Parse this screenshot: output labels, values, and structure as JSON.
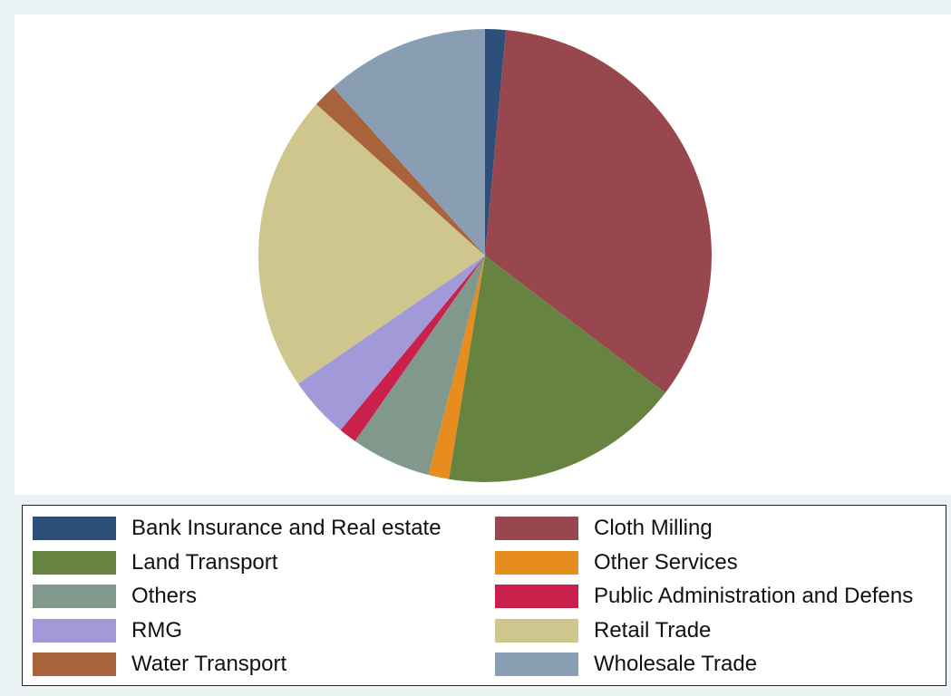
{
  "chart_data": {
    "type": "pie",
    "start_angle": "12 o'clock",
    "direction": "clockwise",
    "legend_placement": "bottom",
    "legend_columns": 2,
    "slices": [
      {
        "label": "Bank Insurance and Real estate",
        "value": 1.5,
        "color": "#2c5079"
      },
      {
        "label": "Cloth Milling",
        "value": 34.5,
        "color": "#98474e"
      },
      {
        "label": "Land Transport",
        "value": 17.5,
        "color": "#66833f"
      },
      {
        "label": "Other Services",
        "value": 1.5,
        "color": "#e78c1f"
      },
      {
        "label": "Others",
        "value": 5.8,
        "color": "#81998d"
      },
      {
        "label": "Public Administration and Defens",
        "value": 1.3,
        "color": "#cb1f4c"
      },
      {
        "label": "RMG",
        "value": 4.5,
        "color": "#a29ad8"
      },
      {
        "label": "Retail Trade",
        "value": 21.6,
        "color": "#cec68c"
      },
      {
        "label": "Water Transport",
        "value": 1.7,
        "color": "#a8633d"
      },
      {
        "label": "Wholesale Trade",
        "value": 11.9,
        "color": "#8a9eb3"
      }
    ]
  }
}
